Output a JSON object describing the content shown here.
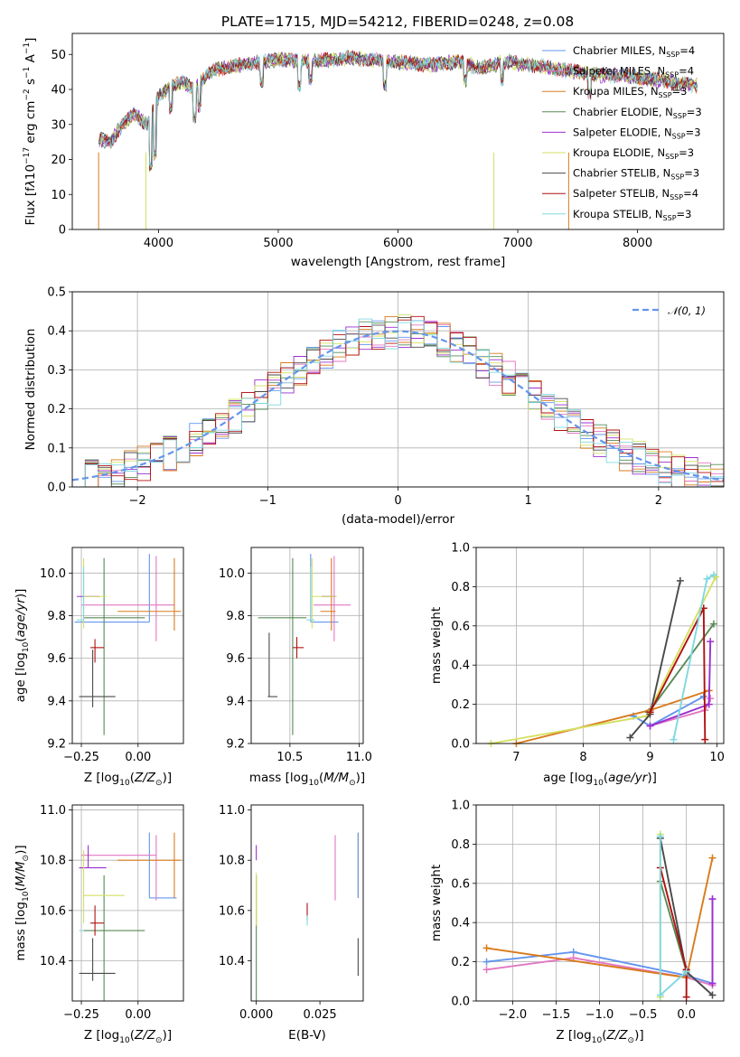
{
  "title": "PLATE=1715, MJD=54212, FIBERID=0248, z=0.08",
  "chart_data": [
    {
      "id": "spectrum",
      "type": "line",
      "xlabel": "wavelength [Angstrom, rest frame]",
      "ylabel": "Flux [fλ10⁻¹⁷ erg cm⁻² s⁻¹ A⁻¹]",
      "xlim": [
        3280,
        8720
      ],
      "ylim": [
        0,
        56
      ],
      "xticks": [
        "4000",
        "5000",
        "6000",
        "7000",
        "8000"
      ],
      "yticks": [
        "0",
        "10",
        "20",
        "30",
        "40",
        "50"
      ],
      "legend_position": "right",
      "legend": [
        {
          "label": "Chabrier MILES, N",
          "sub": "SSP",
          "val": "=4",
          "color": "#6495ed"
        },
        {
          "label": "Salpeter MILES, N",
          "sub": "SSP",
          "val": "=4",
          "color": "#e377c2"
        },
        {
          "label": "Kroupa MILES, N",
          "sub": "SSP",
          "val": "=3",
          "color": "#d87b1d"
        },
        {
          "label": "Chabrier ELODIE, N",
          "sub": "SSP",
          "val": "=3",
          "color": "#578a57"
        },
        {
          "label": "Salpeter ELODIE, N",
          "sub": "SSP",
          "val": "=3",
          "color": "#9b30d0"
        },
        {
          "label": "Kroupa ELODIE, N",
          "sub": "SSP",
          "val": "=3",
          "color": "#d4e060"
        },
        {
          "label": "Chabrier STELIB, N",
          "sub": "SSP",
          "val": "=3",
          "color": "#4a4a4a"
        },
        {
          "label": "Salpeter STELIB, N",
          "sub": "SSP",
          "val": "=4",
          "color": "#b01010"
        },
        {
          "label": "Kroupa STELIB, N",
          "sub": "SSP",
          "val": "=3",
          "color": "#7fd8e0"
        }
      ],
      "continuum": {
        "x": [
          3500,
          3600,
          3700,
          3800,
          3900,
          4000,
          4100,
          4200,
          4300,
          4400,
          4500,
          4700,
          5000,
          5300,
          5600,
          5900,
          6100,
          6300,
          6500,
          6700,
          6900,
          7100,
          7300,
          7500,
          7700,
          7900,
          8100,
          8300,
          8500
        ],
        "y": [
          26,
          25,
          30,
          33,
          30,
          38,
          41,
          42,
          40,
          44,
          46,
          47,
          48.5,
          48,
          49,
          48,
          47.5,
          47,
          48,
          46,
          48,
          47,
          46,
          45,
          44,
          44,
          43,
          42,
          41
        ]
      }
    },
    {
      "id": "residuals",
      "type": "step",
      "xlabel": "(data-model)/error",
      "ylabel": "Normed distribution",
      "xlim": [
        -2.5,
        2.5
      ],
      "ylim": [
        0,
        0.5
      ],
      "xticks": [
        "−2",
        "−1",
        "0",
        "1",
        "2"
      ],
      "yticks": [
        "0.0",
        "0.1",
        "0.2",
        "0.3",
        "0.4",
        "0.5"
      ],
      "grid": true,
      "legend_position": "top-right",
      "legend": [
        {
          "label": "𝒩(0, 1)",
          "color": "#6495ed",
          "style": "dashed"
        }
      ],
      "bin_width": 0.1
    },
    {
      "id": "z-age",
      "type": "errorbar",
      "xlabel": "Z [log₁₀(Z/Z⊙)]",
      "ylabel": "age  [log₁₀(age/yr)]",
      "xlim": [
        -0.29,
        0.2
      ],
      "ylim": [
        9.2,
        10.12
      ],
      "xticks": [
        "−0.25",
        "0.00"
      ],
      "yticks": [
        "9.2",
        "9.4",
        "9.6",
        "9.8",
        "10.0"
      ],
      "grid": true,
      "points": [
        {
          "x": 0.05,
          "y": 9.77,
          "xe": [
            0.33,
            0.0
          ],
          "ye": [
            0.0,
            0.32
          ],
          "color": "#6495ed"
        },
        {
          "x": 0.08,
          "y": 9.85,
          "xe": [
            0.33,
            0.08
          ],
          "ye": [
            0.17,
            0.23
          ],
          "color": "#e377c2"
        },
        {
          "x": 0.16,
          "y": 9.82,
          "xe": [
            0.25,
            0.03
          ],
          "ye": [
            0.09,
            0.25
          ],
          "color": "#d87b1d"
        },
        {
          "x": -0.15,
          "y": 9.79,
          "xe": [
            0.09,
            0.18
          ],
          "ye": [
            0.55,
            0.28
          ],
          "color": "#578a57"
        },
        {
          "x": -0.22,
          "y": 9.89,
          "xe": [
            0.05,
            0.05
          ],
          "ye": [
            0.0,
            0.0
          ],
          "color": "#9b30d0"
        },
        {
          "x": -0.24,
          "y": 9.89,
          "xe": [
            0.0,
            0.1
          ],
          "ye": [
            0.15,
            0.18
          ],
          "color": "#d4e060"
        },
        {
          "x": -0.2,
          "y": 9.42,
          "xe": [
            0.06,
            0.1
          ],
          "ye": [
            0.05,
            0.22
          ],
          "color": "#4a4a4a"
        },
        {
          "x": -0.19,
          "y": 9.65,
          "xe": [
            0.02,
            0.04
          ],
          "ye": [
            0.07,
            0.04
          ],
          "color": "#b01010"
        },
        {
          "x": -0.24,
          "y": 9.78,
          "xe": [
            0.03,
            0.0
          ],
          "ye": [
            0.0,
            0.25
          ],
          "color": "#7fd8e0"
        }
      ]
    },
    {
      "id": "mass-age",
      "type": "errorbar",
      "xlabel": "mass [log₁₀(M/M⊙)]",
      "ylabel": "",
      "xlim": [
        10.22,
        11.03
      ],
      "ylim": [
        9.2,
        10.12
      ],
      "xticks": [
        "10.5",
        "11.0"
      ],
      "yticks": [
        "9.2",
        "9.4",
        "9.6",
        "9.8",
        "10.0"
      ],
      "grid": true,
      "points": [
        {
          "x": 10.65,
          "y": 9.77,
          "xe": [
            0.0,
            0.2
          ],
          "ye": [
            0.0,
            0.32
          ],
          "color": "#6495ed"
        },
        {
          "x": 10.82,
          "y": 9.85,
          "xe": [
            0.15,
            0.12
          ],
          "ye": [
            0.17,
            0.23
          ],
          "color": "#e377c2"
        },
        {
          "x": 10.8,
          "y": 9.82,
          "xe": [
            0.08,
            0.03
          ],
          "ye": [
            0.09,
            0.25
          ],
          "color": "#d87b1d"
        },
        {
          "x": 10.52,
          "y": 9.79,
          "xe": [
            0.25,
            0.1
          ],
          "ye": [
            0.55,
            0.28
          ],
          "color": "#578a57"
        },
        {
          "x": 10.78,
          "y": 9.89,
          "xe": [
            0.05,
            0.05
          ],
          "ye": [
            0.0,
            0.0
          ],
          "color": "#9b30d0"
        },
        {
          "x": 10.66,
          "y": 9.89,
          "xe": [
            0.0,
            0.18
          ],
          "ye": [
            0.15,
            0.18
          ],
          "color": "#d4e060"
        },
        {
          "x": 10.35,
          "y": 9.42,
          "xe": [
            0.01,
            0.06
          ],
          "ye": [
            0.0,
            0.3
          ],
          "color": "#4a4a4a"
        },
        {
          "x": 10.55,
          "y": 9.65,
          "xe": [
            0.03,
            0.05
          ],
          "ye": [
            0.05,
            0.05
          ],
          "color": "#b01010"
        },
        {
          "x": 10.65,
          "y": 9.78,
          "xe": [
            0.03,
            0.03
          ],
          "ye": [
            0.0,
            0.25
          ],
          "color": "#7fd8e0"
        }
      ]
    },
    {
      "id": "age-weight",
      "type": "line",
      "xlabel": "age  [log₁₀(age/yr)]",
      "ylabel": "mass weight",
      "xlim": [
        6.4,
        10.1
      ],
      "ylim": [
        0,
        1.0
      ],
      "xticks": [
        "7",
        "8",
        "9",
        "10"
      ],
      "yticks": [
        "0.0",
        "0.2",
        "0.4",
        "0.6",
        "0.8",
        "1.0"
      ],
      "grid": true,
      "series": [
        {
          "color": "#6495ed",
          "x": [
            8.75,
            9.0,
            9.8
          ],
          "y": [
            0.14,
            0.09,
            0.24
          ]
        },
        {
          "color": "#e377c2",
          "x": [
            9.0,
            9.82,
            9.9
          ],
          "y": [
            0.09,
            0.17,
            0.23
          ]
        },
        {
          "color": "#d87b1d",
          "x": [
            7.0,
            9.0,
            9.88
          ],
          "y": [
            0.0,
            0.17,
            0.27
          ]
        },
        {
          "color": "#578a57",
          "x": [
            8.98,
            9.95
          ],
          "y": [
            0.16,
            0.61
          ]
        },
        {
          "color": "#9b30d0",
          "x": [
            9.0,
            9.88,
            9.9
          ],
          "y": [
            0.09,
            0.2,
            0.52
          ]
        },
        {
          "color": "#d4e060",
          "x": [
            6.62,
            8.95,
            9.98
          ],
          "y": [
            0.0,
            0.14,
            0.85
          ]
        },
        {
          "color": "#4a4a4a",
          "x": [
            8.7,
            9.0,
            9.45
          ],
          "y": [
            0.03,
            0.15,
            0.83
          ]
        },
        {
          "color": "#b01010",
          "x": [
            9.0,
            9.8,
            9.82
          ],
          "y": [
            0.16,
            0.69,
            0.02
          ]
        },
        {
          "color": "#7fd8e0",
          "x": [
            9.35,
            9.85,
            9.95
          ],
          "y": [
            0.02,
            0.84,
            0.86
          ]
        }
      ]
    },
    {
      "id": "z-mass",
      "type": "errorbar",
      "xlabel": "Z [log₁₀(Z/Z⊙)]",
      "ylabel": "mass [log₁₀(M/M⊙)]",
      "xlim": [
        -0.29,
        0.2
      ],
      "ylim": [
        10.24,
        11.02
      ],
      "xticks": [
        "−0.25",
        "0.00"
      ],
      "yticks": [
        "10.4",
        "10.6",
        "10.8",
        "11.0"
      ],
      "grid": true,
      "points": [
        {
          "x": 0.05,
          "y": 10.65,
          "xe": [
            0.0,
            0.12
          ],
          "ye": [
            0.0,
            0.26
          ],
          "color": "#6495ed"
        },
        {
          "x": 0.08,
          "y": 10.82,
          "xe": [
            0.33,
            0.0
          ],
          "ye": [
            0.18,
            0.08
          ],
          "color": "#e377c2"
        },
        {
          "x": 0.16,
          "y": 10.8,
          "xe": [
            0.25,
            0.03
          ],
          "ye": [
            0.15,
            0.11
          ],
          "color": "#d87b1d"
        },
        {
          "x": -0.15,
          "y": 10.52,
          "xe": [
            0.09,
            0.18
          ],
          "ye": [
            0.28,
            0.22
          ],
          "color": "#578a57"
        },
        {
          "x": -0.22,
          "y": 10.77,
          "xe": [
            0.04,
            0.08
          ],
          "ye": [
            0.0,
            0.09
          ],
          "color": "#9b30d0"
        },
        {
          "x": -0.24,
          "y": 10.66,
          "xe": [
            0.0,
            0.18
          ],
          "ye": [
            0.11,
            0.18
          ],
          "color": "#d4e060"
        },
        {
          "x": -0.2,
          "y": 10.35,
          "xe": [
            0.06,
            0.1
          ],
          "ye": [
            0.03,
            0.14
          ],
          "color": "#4a4a4a"
        },
        {
          "x": -0.19,
          "y": 10.55,
          "xe": [
            0.02,
            0.04
          ],
          "ye": [
            0.05,
            0.07
          ],
          "color": "#b01010"
        },
        {
          "x": -0.24,
          "y": 10.52,
          "xe": [
            0.02,
            0.0
          ],
          "ye": [
            0.0,
            0.0
          ],
          "color": "#7fd8e0"
        }
      ]
    },
    {
      "id": "ebv-mass",
      "type": "errorbar",
      "xlabel": "E(B-V)",
      "ylabel": "",
      "xlim": [
        -0.002,
        0.042
      ],
      "ylim": [
        10.24,
        11.02
      ],
      "xticks": [
        "0.000",
        "0.025"
      ],
      "yticks": [
        "10.4",
        "10.6",
        "10.8",
        "11.0"
      ],
      "grid": false,
      "points": [
        {
          "x": 0.04,
          "y": 10.8,
          "xe": [
            0.0,
            0.0
          ],
          "ye": [
            0.15,
            0.11
          ],
          "color": "#d87b1d"
        },
        {
          "x": 0.031,
          "y": 10.82,
          "xe": [
            0.0,
            0.0
          ],
          "ye": [
            0.18,
            0.08
          ],
          "color": "#e377c2"
        },
        {
          "x": 0.0,
          "y": 10.52,
          "xe": [
            0.0,
            0.0
          ],
          "ye": [
            0.28,
            0.22
          ],
          "color": "#578a57"
        },
        {
          "x": 0.0,
          "y": 10.8,
          "xe": [
            0.0,
            0.0
          ],
          "ye": [
            0.0,
            0.06
          ],
          "color": "#9b30d0"
        },
        {
          "x": 0.0,
          "y": 10.65,
          "xe": [
            0.0,
            0.0
          ],
          "ye": [
            0.11,
            0.1
          ],
          "color": "#d4e060"
        },
        {
          "x": 0.04,
          "y": 10.4,
          "xe": [
            0.0,
            0.0
          ],
          "ye": [
            0.06,
            0.09
          ],
          "color": "#4a4a4a"
        },
        {
          "x": 0.02,
          "y": 10.59,
          "xe": [
            0.0,
            0.0
          ],
          "ye": [
            0.03,
            0.04
          ],
          "color": "#b01010"
        },
        {
          "x": 0.02,
          "y": 10.56,
          "xe": [
            0.0,
            0.0
          ],
          "ye": [
            0.02,
            0.02
          ],
          "color": "#7fd8e0"
        },
        {
          "x": 0.04,
          "y": 10.73,
          "xe": [
            0.0,
            0.0
          ],
          "ye": [
            0.08,
            0.18
          ],
          "color": "#6495ed"
        }
      ]
    },
    {
      "id": "z-weight",
      "type": "line",
      "xlabel": "Z [log₁₀(Z/Z⊙)]",
      "ylabel": "mass weight",
      "xlim": [
        -2.42,
        0.43
      ],
      "ylim": [
        0,
        1.0
      ],
      "xticks": [
        "−2.0",
        "−1.5",
        "−1.0",
        "−0.5",
        "0.0"
      ],
      "yticks": [
        "0.0",
        "0.2",
        "0.4",
        "0.6",
        "0.8",
        "1.0"
      ],
      "grid": true,
      "series": [
        {
          "color": "#6495ed",
          "x": [
            -2.3,
            -1.3,
            0.0,
            0.3
          ],
          "y": [
            0.2,
            0.25,
            0.13,
            0.09
          ]
        },
        {
          "color": "#e377c2",
          "x": [
            -2.3,
            -1.3,
            0.0,
            0.3,
            0.3
          ],
          "y": [
            0.16,
            0.22,
            0.12,
            0.08,
            0.52
          ]
        },
        {
          "color": "#d87b1d",
          "x": [
            -2.3,
            0.0,
            0.3
          ],
          "y": [
            0.27,
            0.12,
            0.73
          ]
        },
        {
          "color": "#578a57",
          "x": [
            -0.3,
            0.0
          ],
          "y": [
            0.61,
            0.15
          ]
        },
        {
          "color": "#9b30d0",
          "x": [
            0.3,
            0.3
          ],
          "y": [
            0.09,
            0.52
          ]
        },
        {
          "color": "#d4e060",
          "x": [
            -0.3,
            -0.3
          ],
          "y": [
            0.02,
            0.85
          ]
        },
        {
          "color": "#4a4a4a",
          "x": [
            -0.3,
            0.0,
            0.3
          ],
          "y": [
            0.83,
            0.15,
            0.03
          ]
        },
        {
          "color": "#b01010",
          "x": [
            -0.3,
            0.0,
            0.0
          ],
          "y": [
            0.68,
            0.16,
            0.02
          ]
        },
        {
          "color": "#7fd8e0",
          "x": [
            -0.3,
            -0.3,
            0.0
          ],
          "y": [
            0.84,
            0.03,
            0.15
          ]
        }
      ]
    }
  ]
}
